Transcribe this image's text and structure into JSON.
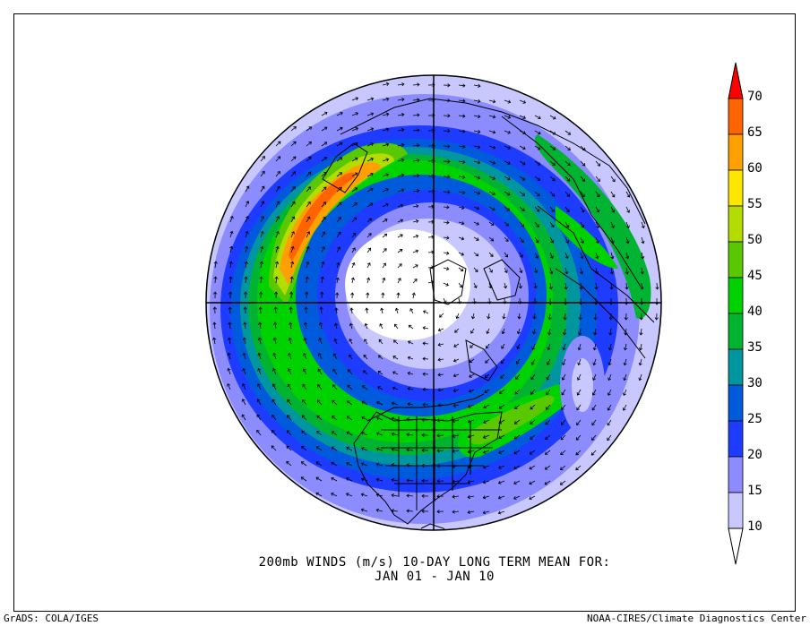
{
  "title_line1": "200mb WINDS (m/s)   10-DAY LONG TERM MEAN FOR:",
  "title_line2": "JAN 01 - JAN 10",
  "footer_left": "GrADS: COLA/IGES",
  "footer_right": "NOAA-CIRES/Climate Diagnostics Center",
  "colorbar": {
    "levels": [
      "70",
      "65",
      "60",
      "55",
      "50",
      "45",
      "40",
      "35",
      "30",
      "25",
      "20",
      "15",
      "10"
    ],
    "colors": [
      "#ff0000",
      "#ff6400",
      "#ffa000",
      "#ffe600",
      "#b4dc00",
      "#5ac800",
      "#00d200",
      "#00b432",
      "#0096a0",
      "#005adc",
      "#1e3cff",
      "#8c8cff",
      "#c8c8ff",
      "#ffffff"
    ]
  },
  "map": {
    "projection": "north-polar-stereographic",
    "field": "200mb wind speed",
    "units": "m/s"
  }
}
